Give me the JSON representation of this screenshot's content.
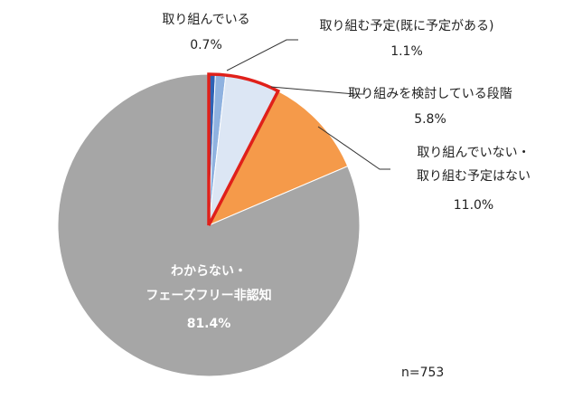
{
  "chart_data": {
    "type": "pie",
    "sample_note": "n=753",
    "slices": [
      {
        "label_lines": [
          "取り組んでいる"
        ],
        "value": 0.7,
        "value_text": "0.7%",
        "color": "#2f62b5"
      },
      {
        "label_lines": [
          "取り組む予定(既に予定がある)"
        ],
        "value": 1.1,
        "value_text": "1.1%",
        "color": "#8fb2e0"
      },
      {
        "label_lines": [
          "取り組みを検討している段階"
        ],
        "value": 5.8,
        "value_text": "5.8%",
        "color": "#dce6f4"
      },
      {
        "label_lines": [
          "取り組んでいない・",
          "取り組む予定はない"
        ],
        "value": 11.0,
        "value_text": "11.0%",
        "color": "#f59a4a"
      },
      {
        "label_lines": [
          "わからない・",
          "フェーズフリー非認知"
        ],
        "value": 81.4,
        "value_text": "81.4%",
        "color": "#a6a6a6"
      }
    ],
    "highlight": {
      "slice_indices": [
        0,
        1,
        2
      ],
      "color": "#e0201a"
    },
    "start_angle_deg": 0,
    "direction": "clockwise",
    "legend": "none"
  }
}
